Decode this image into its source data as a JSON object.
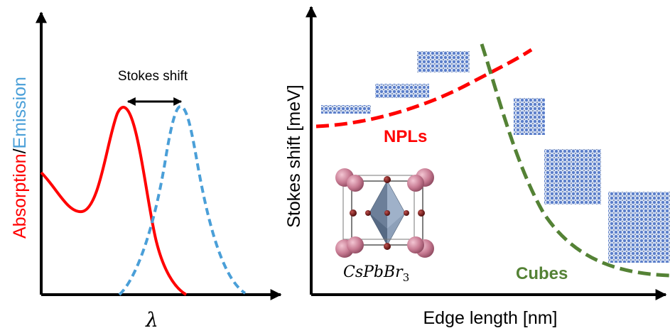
{
  "left_panel": {
    "ylabel_absorption": "Absorption",
    "ylabel_sep": "/",
    "ylabel_emission": "Emission",
    "xlabel": "λ",
    "annotation": "Stokes shift",
    "colors": {
      "absorption": "#ff0000",
      "emission": "#4a9fd8",
      "axis": "#000000"
    }
  },
  "right_panel": {
    "xlabel": "Edge length [nm]",
    "ylabel": "Stokes shift [meV]",
    "label_npls": "NPLs",
    "label_cubes": "Cubes",
    "crystal_formula_base": "CsPbBr",
    "crystal_formula_sub": "3",
    "colors": {
      "npls": "#ff0000",
      "cubes": "#548235",
      "tile": "#5b7ec9"
    }
  }
}
